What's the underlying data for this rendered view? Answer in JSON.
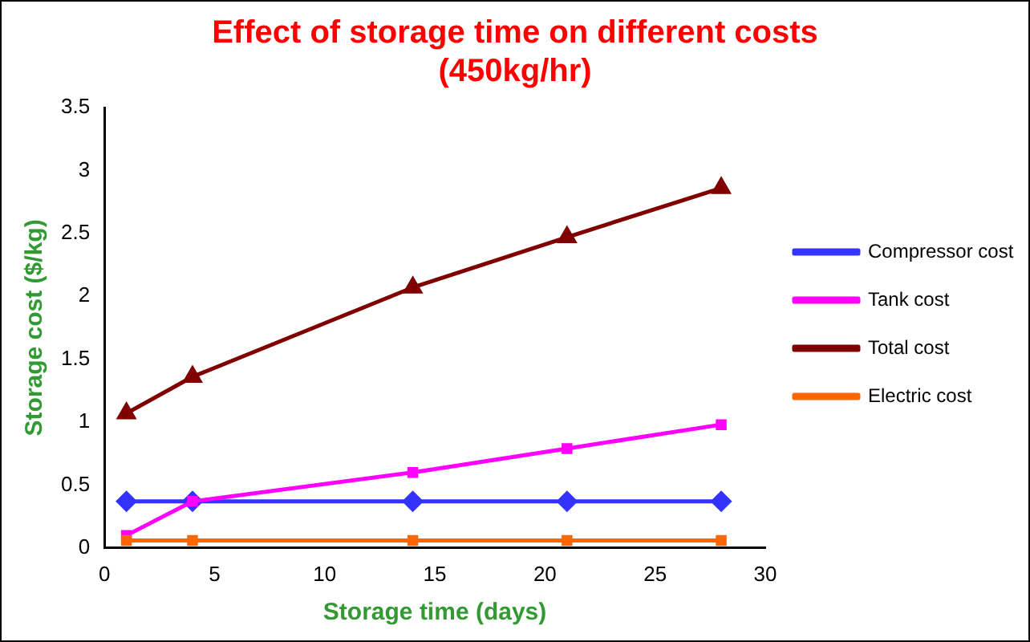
{
  "chart_data": {
    "type": "line",
    "title": "Effect of storage time on different costs (450kg/hr)",
    "xlabel": "Storage time (days)",
    "ylabel": "Storage cost ($/kg)",
    "x": [
      1,
      4,
      14,
      21,
      28
    ],
    "series": [
      {
        "name": "Compressor cost",
        "color": "#3333ff",
        "marker": "diamond",
        "values": [
          0.37,
          0.37,
          0.37,
          0.37,
          0.37
        ]
      },
      {
        "name": "Tank cost",
        "color": "#ff00ff",
        "marker": "square",
        "values": [
          0.1,
          0.37,
          0.6,
          0.79,
          0.98
        ]
      },
      {
        "name": "Total cost",
        "color": "#800000",
        "marker": "triangle",
        "values": [
          1.07,
          1.36,
          2.07,
          2.47,
          2.86
        ]
      },
      {
        "name": "Electric cost",
        "color": "#ff6600",
        "marker": "square",
        "values": [
          0.06,
          0.06,
          0.06,
          0.06,
          0.06
        ]
      }
    ],
    "xlim": [
      0,
      30
    ],
    "xticks": [
      0,
      5,
      10,
      15,
      20,
      25,
      30
    ],
    "ylim": [
      0,
      3.5
    ],
    "yticks": [
      0,
      0.5,
      1,
      1.5,
      2,
      2.5,
      3,
      3.5
    ],
    "grid": false,
    "legend": "right",
    "line_style": "solid"
  }
}
